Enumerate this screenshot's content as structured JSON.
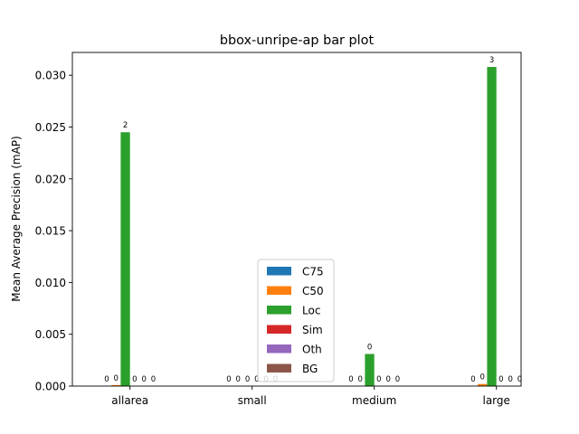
{
  "chart_data": {
    "type": "bar",
    "title": "bbox-unripe-ap bar plot",
    "xlabel": "",
    "ylabel": "Mean Average Precision (mAP)",
    "categories": [
      "allarea",
      "small",
      "medium",
      "large"
    ],
    "ylim": [
      0,
      0.0322
    ],
    "yticks": [
      "0.000",
      "0.005",
      "0.010",
      "0.015",
      "0.020",
      "0.025",
      "0.030"
    ],
    "grid": false,
    "legend_position": "lower center",
    "series": [
      {
        "name": "C75",
        "color": "#1f77b4",
        "values": [
          0,
          0,
          0,
          0
        ],
        "labels": [
          "0",
          "0",
          "0",
          "0"
        ]
      },
      {
        "name": "C50",
        "color": "#ff7f0e",
        "values": [
          0.0001,
          0,
          0,
          0.0002
        ],
        "labels": [
          "0",
          "0",
          "0",
          "0"
        ]
      },
      {
        "name": "Loc",
        "color": "#2ca02c",
        "values": [
          0.0245,
          0,
          0.0031,
          0.0308
        ],
        "labels": [
          "2",
          "0",
          "0",
          "3"
        ]
      },
      {
        "name": "Sim",
        "color": "#d62728",
        "values": [
          0,
          0,
          0,
          0
        ],
        "labels": [
          "0",
          "0",
          "0",
          "0"
        ]
      },
      {
        "name": "Oth",
        "color": "#9467bd",
        "values": [
          0,
          0,
          0,
          0
        ],
        "labels": [
          "0",
          "0",
          "0",
          "0"
        ]
      },
      {
        "name": "BG",
        "color": "#8c564b",
        "values": [
          0,
          0,
          0,
          0
        ],
        "labels": [
          "0",
          "0",
          "0",
          "0"
        ]
      }
    ]
  }
}
